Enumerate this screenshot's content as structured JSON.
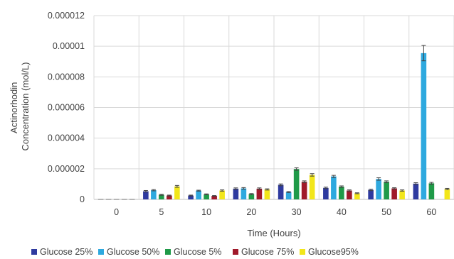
{
  "chart_data": {
    "type": "bar",
    "title": "",
    "xlabel": "Time (Hours)",
    "ylabel_lines": [
      "Actinorhodin",
      "Concentration (mol/L)"
    ],
    "categories": [
      "0",
      "5",
      "10",
      "20",
      "30",
      "40",
      "50",
      "60"
    ],
    "ylim": [
      0,
      1.2e-05
    ],
    "y_ticks": [
      0,
      2e-06,
      4e-06,
      6e-06,
      8e-06,
      1e-05,
      1.2e-05
    ],
    "y_tick_labels": [
      "0",
      "0.000002",
      "0.000004",
      "0.000006",
      "0.000008",
      "0.00001",
      "0.000012"
    ],
    "grid": "horizontal and vertical gridlines",
    "legend_position": "bottom",
    "series": [
      {
        "name": "Glucose 25%",
        "color": "#2e3a9f",
        "values": [
          0,
          5.3e-07,
          2.5e-07,
          7e-07,
          9.5e-07,
          7.5e-07,
          6.2e-07,
          1.03e-06
        ],
        "errors": [
          0,
          5e-08,
          3e-08,
          5e-08,
          6e-08,
          5e-08,
          5e-08,
          6e-08
        ]
      },
      {
        "name": "Glucose 50%",
        "color": "#2ea9df",
        "values": [
          0,
          6e-07,
          5.7e-07,
          7.2e-07,
          4.8e-07,
          1.5e-06,
          1.33e-06,
          9.55e-06
        ],
        "errors": [
          0,
          4e-08,
          3e-08,
          5e-08,
          3e-08,
          7e-08,
          8e-08,
          5e-07
        ]
      },
      {
        "name": "Glucose 5%",
        "color": "#1f9a48",
        "values": [
          0,
          3e-07,
          3.3e-07,
          3.5e-07,
          1.98e-06,
          8.3e-07,
          1.15e-06,
          1.05e-06
        ],
        "errors": [
          0,
          3e-08,
          3e-08,
          3e-08,
          8e-08,
          5e-08,
          6e-08,
          6e-08
        ]
      },
      {
        "name": "Glucose 75%",
        "color": "#a0192a",
        "values": [
          0,
          2.5e-07,
          2.3e-07,
          7e-07,
          1.15e-06,
          5.8e-07,
          7.2e-07,
          null
        ],
        "errors": [
          0,
          3e-08,
          2e-08,
          5e-08,
          6e-08,
          4e-08,
          4e-08,
          null
        ]
      },
      {
        "name": "Glucose95%",
        "color": "#f2e61a",
        "values": [
          0,
          8.5e-07,
          5.8e-07,
          6.5e-07,
          1.6e-06,
          4e-07,
          5.8e-07,
          6.8e-07
        ],
        "errors": [
          0,
          6e-08,
          4e-08,
          4e-08,
          8e-08,
          3e-08,
          4e-08,
          4e-08
        ]
      }
    ]
  }
}
